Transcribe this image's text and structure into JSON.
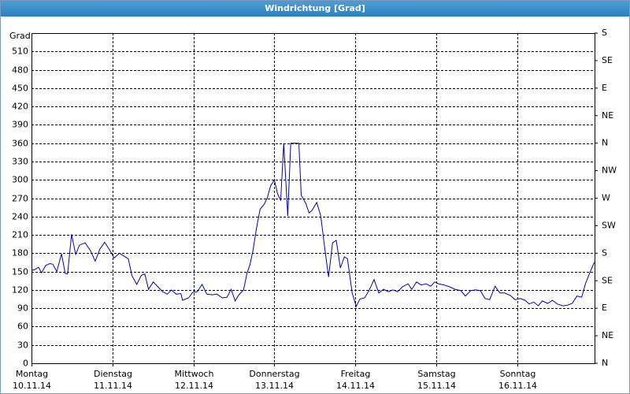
{
  "chart_data": {
    "type": "line",
    "title": "Windrichtung [Grad]",
    "y_label": "Grad",
    "xlim": [
      0,
      167
    ],
    "xticks": [
      {
        "value": 0,
        "label": "Montag"
      },
      {
        "value": 24,
        "label": "Dienstag"
      },
      {
        "value": 48,
        "label": "Mittwoch"
      },
      {
        "value": 72,
        "label": "Donnerstag"
      },
      {
        "value": 96,
        "label": "Freitag"
      },
      {
        "value": 120,
        "label": "Samstag"
      },
      {
        "value": 144,
        "label": "Sonntag"
      }
    ],
    "xtick_dates": [
      "10.11.14",
      "11.11.14",
      "12.11.14",
      "13.11.14",
      "14.11.14",
      "15.11.14",
      "16.11.14"
    ],
    "ylim": [
      0,
      540
    ],
    "yticks": [
      0,
      30,
      60,
      90,
      120,
      150,
      180,
      210,
      240,
      270,
      300,
      330,
      360,
      390,
      420,
      450,
      480,
      510
    ],
    "y2lim": [
      0,
      540
    ],
    "y2ticks": [
      {
        "value": 0,
        "label": "N"
      },
      {
        "value": 45,
        "label": "NE"
      },
      {
        "value": 90,
        "label": "E"
      },
      {
        "value": 135,
        "label": "SE"
      },
      {
        "value": 180,
        "label": "S"
      },
      {
        "value": 225,
        "label": "SW"
      },
      {
        "value": 270,
        "label": "W"
      },
      {
        "value": 315,
        "label": "NW"
      },
      {
        "value": 360,
        "label": "N"
      },
      {
        "value": 405,
        "label": "NE"
      },
      {
        "value": 450,
        "label": "E"
      },
      {
        "value": 495,
        "label": "SE"
      },
      {
        "value": 540,
        "label": "S"
      }
    ],
    "grid": true,
    "series": [
      {
        "color": "#0000c0",
        "x": [
          0,
          0.9,
          2.1,
          3.0,
          4.2,
          5.4,
          6.3,
          7.5,
          8.9,
          10.0,
          10.7,
          11.9,
          13.1,
          14.2,
          15.9,
          17.5,
          18.9,
          20.3,
          21.7,
          23.3,
          24.5,
          26.1,
          27.5,
          28.7,
          29.8,
          31.2,
          32.6,
          33.6,
          34.7,
          36.1,
          37.5,
          38.9,
          40.3,
          41.5,
          42.9,
          44.3,
          44.8,
          46.6,
          47.8,
          49.2,
          50.6,
          52.0,
          53.6,
          55.0,
          56.6,
          58.0,
          59.2,
          60.4,
          61.5,
          62.9,
          63.9,
          64.8,
          65.7,
          66.7,
          67.8,
          69.0,
          69.9,
          70.9,
          72.0,
          73.0,
          73.9,
          74.8,
          76.0,
          76.9,
          78.3,
          79.3,
          80.0,
          81.4,
          82.3,
          83.2,
          84.6,
          85.8,
          86.9,
          88.1,
          89.3,
          90.4,
          91.6,
          92.8,
          93.7,
          95.1,
          96.3,
          97.4,
          98.8,
          100.2,
          101.6,
          103.0,
          104.4,
          105.8,
          107.2,
          108.6,
          110.0,
          111.7,
          112.8,
          114.2,
          115.6,
          117.0,
          118.4,
          119.6,
          120.7,
          122.4,
          124.0,
          125.6,
          127.3,
          128.7,
          130.3,
          131.7,
          133.1,
          134.5,
          135.9,
          137.5,
          138.9,
          140.3,
          142.0,
          143.4,
          145.0,
          146.4,
          147.6,
          149.0,
          150.3,
          151.5,
          153.1,
          154.5,
          155.9,
          157.6,
          159.0,
          160.4,
          161.8,
          163.2,
          164.3,
          165.5,
          166.9
        ],
        "values": [
          152,
          153,
          157,
          148,
          160,
          163,
          162,
          150,
          179,
          147,
          146,
          211,
          178,
          193,
          197,
          184,
          167,
          187,
          198,
          184,
          172,
          180,
          175,
          171,
          143,
          129,
          144,
          146,
          121,
          133,
          125,
          117,
          113,
          120,
          113,
          114,
          103,
          107,
          116,
          117,
          129,
          113,
          112,
          113,
          107,
          108,
          121,
          102,
          112,
          120,
          147,
          161,
          185,
          220,
          252,
          260,
          270,
          290,
          300,
          277,
          266,
          360,
          241,
          360,
          360,
          360,
          275,
          261,
          246,
          250,
          263,
          241,
          191,
          141,
          197,
          201,
          156,
          174,
          171,
          115,
          93,
          105,
          107,
          120,
          137,
          115,
          121,
          117,
          120,
          117,
          125,
          130,
          121,
          133,
          128,
          130,
          126,
          133,
          130,
          128,
          125,
          121,
          119,
          110,
          119,
          120,
          119,
          106,
          104,
          126,
          115,
          115,
          111,
          104,
          106,
          103,
          97,
          100,
          94,
          102,
          98,
          103,
          97,
          94,
          95,
          98,
          110,
          108,
          130,
          147,
          165
        ]
      }
    ]
  }
}
